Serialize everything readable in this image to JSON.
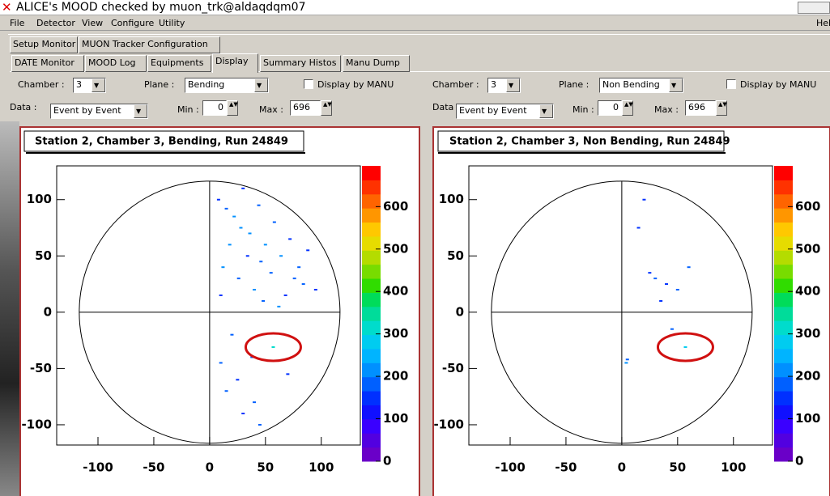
{
  "window": {
    "title": "ALICE's MOOD checked by muon_trk@aldaqdqm07",
    "menu": [
      "File",
      "Detector",
      "View",
      "Configure",
      "Utility",
      "Hel"
    ],
    "tabs_top": [
      "Setup Monitor",
      "MUON Tracker Configuration"
    ],
    "tabs": [
      "DATE Monitor",
      "MOOD Log",
      "Equipments",
      "Display",
      "Summary Histos",
      "Manu Dump"
    ],
    "active_tab": 3
  },
  "controls": [
    {
      "chamber_label": "Chamber :",
      "chamber": "3",
      "plane_label": "Plane :",
      "plane": "Bending",
      "manu": "Display by MANU",
      "data_label": "Data :",
      "data": "Event by Event",
      "min_label": "Min :",
      "min": 0,
      "max_label": "Max :",
      "max": 696
    },
    {
      "chamber_label": "Chamber :",
      "chamber": "3",
      "plane_label": "Plane :",
      "plane": "Non Bending",
      "manu": "Display by MANU",
      "data_label": "Data :",
      "data": "Event by Event",
      "min_label": "Min :",
      "min": 0,
      "max_label": "Max :",
      "max": 696
    }
  ],
  "chart_data": [
    {
      "type": "heatmap",
      "title": "Station 2, Chamber 3, Bending, Run 24849",
      "xlim": [
        -137,
        135
      ],
      "xticks": [
        -100,
        -50,
        0,
        50,
        100
      ],
      "ylim": [
        -118,
        130
      ],
      "yticks": [
        -100,
        -50,
        0,
        50,
        100
      ],
      "zlim": [
        0,
        696
      ],
      "zticks": [
        0,
        100,
        200,
        300,
        400,
        500,
        600
      ],
      "colors": [
        "#6a00c8",
        "#5200e0",
        "#3a00ff",
        "#1010ff",
        "#0030ff",
        "#0060ff",
        "#0090ff",
        "#00b4ff",
        "#00ccf0",
        "#00dccc",
        "#00dc9a",
        "#00dc5a",
        "#30dc00",
        "#78dc00",
        "#b4dc00",
        "#e6dc00",
        "#ffc800",
        "#ff9600",
        "#ff6400",
        "#ff3200",
        "#ff0000"
      ],
      "x": [
        8,
        15,
        22,
        30,
        36,
        44,
        50,
        58,
        64,
        72,
        80,
        88,
        12,
        26,
        40,
        55,
        68,
        84,
        18,
        34,
        48,
        62,
        76,
        10,
        28,
        46,
        95,
        20,
        38,
        70,
        15,
        30,
        45,
        10,
        25,
        40,
        57
      ],
      "y": [
        100,
        92,
        85,
        110,
        70,
        95,
        60,
        80,
        50,
        65,
        40,
        55,
        40,
        30,
        20,
        35,
        15,
        25,
        60,
        50,
        10,
        5,
        30,
        15,
        75,
        45,
        20,
        -20,
        -40,
        -55,
        -70,
        -90,
        -100,
        -45,
        -60,
        -80,
        -31
      ],
      "values": [
        160,
        190,
        210,
        150,
        230,
        170,
        200,
        180,
        220,
        160,
        190,
        150,
        210,
        180,
        200,
        170,
        160,
        190,
        220,
        150,
        180,
        200,
        170,
        160,
        210,
        190,
        150,
        180,
        170,
        160,
        190,
        150,
        180,
        170,
        160,
        190,
        300
      ]
    },
    {
      "type": "heatmap",
      "title": "Station 2, Chamber 3, Non Bending, Run 24849",
      "xlim": [
        -137,
        135
      ],
      "xticks": [
        -100,
        -50,
        0,
        50,
        100
      ],
      "ylim": [
        -118,
        130
      ],
      "yticks": [
        -100,
        -50,
        0,
        50,
        100
      ],
      "zlim": [
        0,
        696
      ],
      "zticks": [
        0,
        100,
        200,
        300,
        400,
        500,
        600
      ],
      "colors": [
        "#6a00c8",
        "#5200e0",
        "#3a00ff",
        "#1010ff",
        "#0030ff",
        "#0060ff",
        "#0090ff",
        "#00b4ff",
        "#00ccf0",
        "#00dccc",
        "#00dc9a",
        "#00dc5a",
        "#30dc00",
        "#78dc00",
        "#b4dc00",
        "#e6dc00",
        "#ffc800",
        "#ff9600",
        "#ff6400",
        "#ff3200",
        "#ff0000"
      ],
      "x": [
        30,
        40,
        15,
        60,
        25,
        50,
        35,
        20,
        45,
        4,
        5,
        57
      ],
      "y": [
        30,
        25,
        75,
        40,
        35,
        20,
        10,
        100,
        -15,
        -45,
        -42,
        -31
      ],
      "values": [
        170,
        160,
        150,
        180,
        160,
        170,
        150,
        160,
        170,
        200,
        180,
        290
      ]
    }
  ]
}
